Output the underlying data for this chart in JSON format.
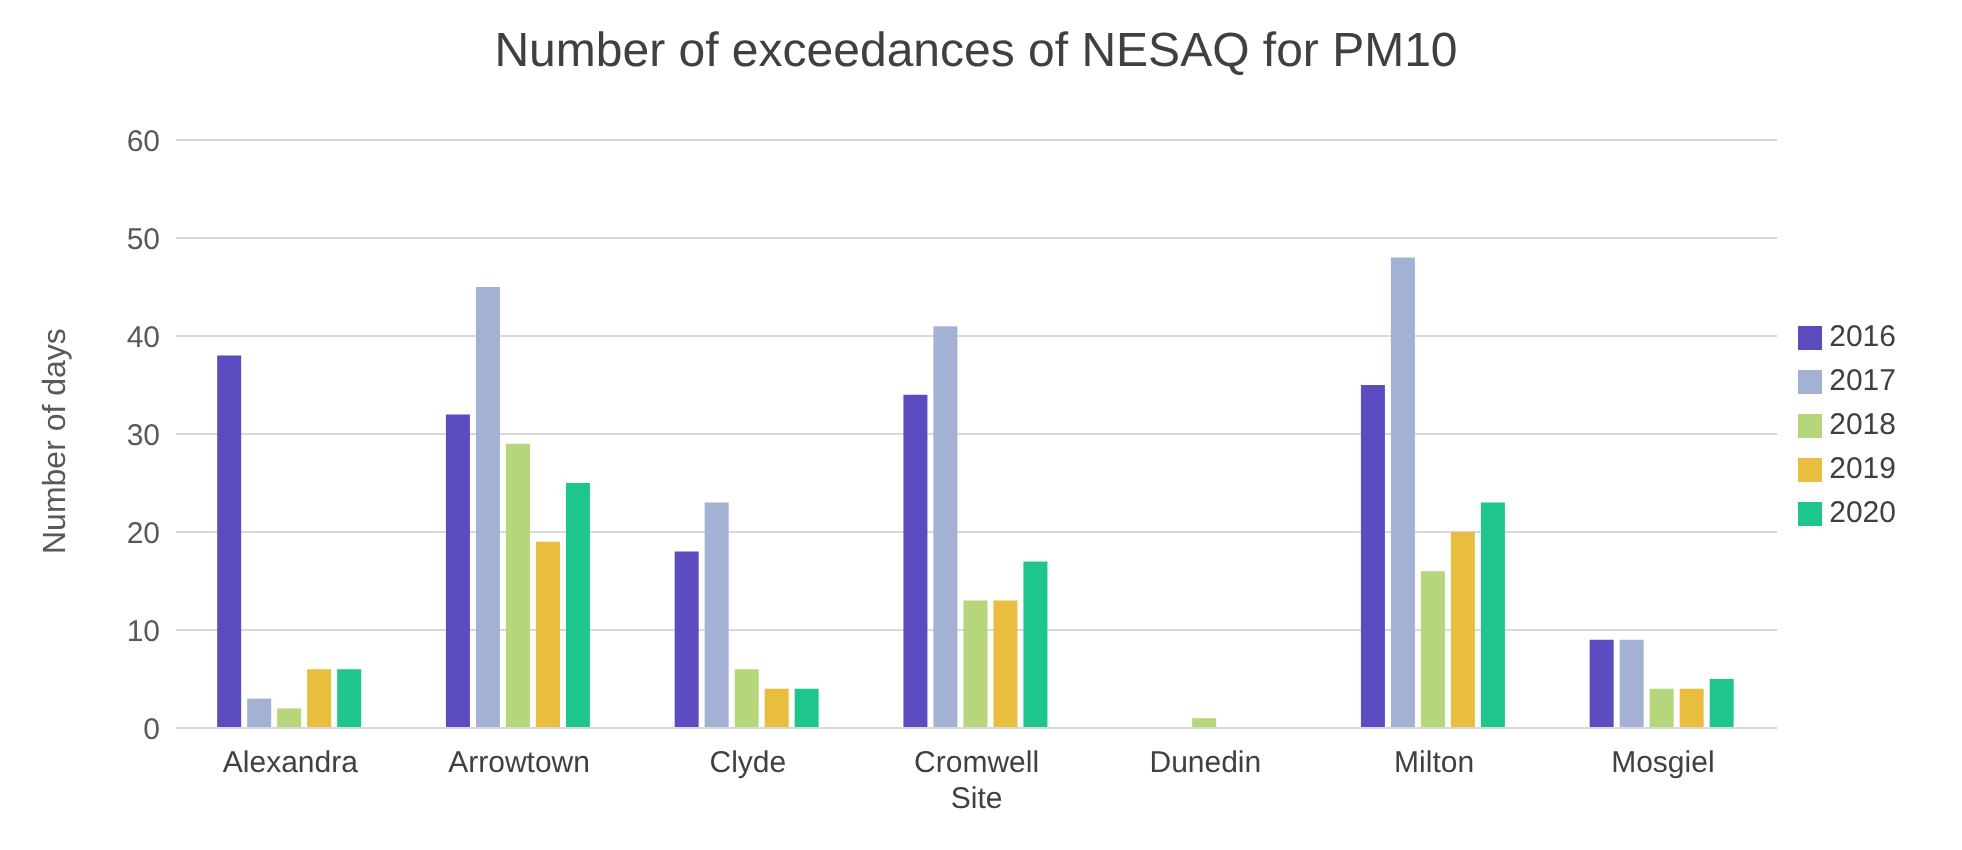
{
  "chart_data": {
    "type": "bar",
    "title": "Number of exceedances of NESAQ for PM10",
    "ylabel": "Number of days",
    "categories": [
      "Alexandra",
      "Arrowtown",
      "Clyde",
      "Cromwell Site",
      "Dunedin",
      "Milton",
      "Mosgiel"
    ],
    "series": [
      {
        "name": "2016",
        "color": "#5b4dbf",
        "values": [
          38,
          32,
          18,
          34,
          0,
          35,
          9
        ]
      },
      {
        "name": "2017",
        "color": "#a3b2d4",
        "values": [
          3,
          45,
          23,
          41,
          0,
          48,
          9
        ]
      },
      {
        "name": "2018",
        "color": "#b5d67b",
        "values": [
          2,
          29,
          6,
          13,
          1,
          16,
          4
        ]
      },
      {
        "name": "2019",
        "color": "#e9bd3d",
        "values": [
          6,
          19,
          4,
          13,
          0,
          20,
          4
        ]
      },
      {
        "name": "2020",
        "color": "#1ec68c",
        "values": [
          6,
          25,
          4,
          17,
          0,
          23,
          5
        ]
      }
    ],
    "ylim": [
      0,
      60
    ],
    "yticks": [
      0,
      10,
      20,
      30,
      40,
      50,
      60
    ],
    "grid": "y",
    "legend": "right"
  }
}
